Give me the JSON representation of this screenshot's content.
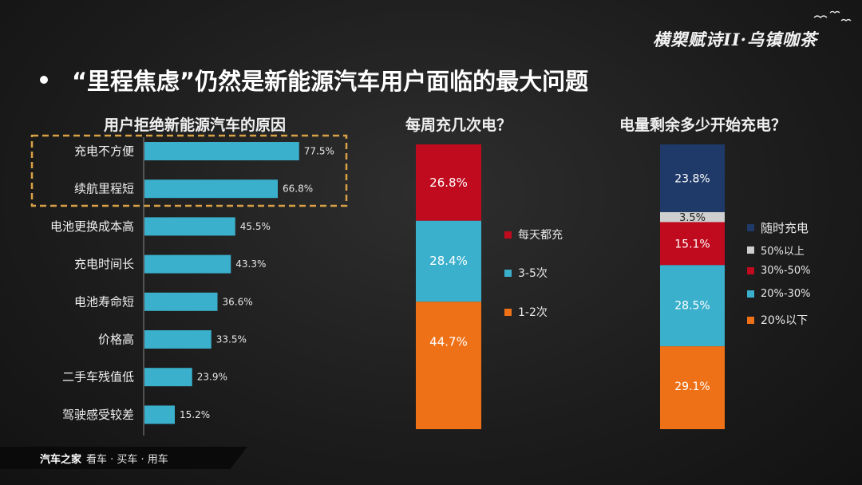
{
  "logo_text": "横槊赋诗II·乌镇咖茶",
  "title": "“里程焦虑”仍然是新能源汽车用户面临的最大问题",
  "footer": {
    "brand": "汽车之家",
    "slogan": "看车 · 买车 · 用车"
  },
  "colors": {
    "bar": "#3ab0cc",
    "highlight": "#d9a145",
    "daily": "#c00b1e",
    "mid": "#3ab0cc",
    "low": "#ee7118",
    "anytime": "#1f3a68",
    "above50": "#cfcfcf"
  },
  "chart_data": [
    {
      "type": "bar",
      "orientation": "horizontal",
      "title": "用户拒绝新能源汽车的原因",
      "categories": [
        "充电不方便",
        "续航里程短",
        "电池更换成本高",
        "充电时间长",
        "电池寿命短",
        "价格高",
        "二手车残值低",
        "驾驶感受较差"
      ],
      "values": [
        77.5,
        66.8,
        45.5,
        43.3,
        36.6,
        33.5,
        23.9,
        15.2
      ],
      "labels": [
        "77.5%",
        "66.8%",
        "45.5%",
        "43.3%",
        "36.6%",
        "33.5%",
        "23.9%",
        "15.2%"
      ],
      "highlighted": [
        "充电不方便",
        "续航里程短"
      ],
      "grid": false
    },
    {
      "type": "bar",
      "stacked": true,
      "title": "每周充几次电？",
      "series": [
        {
          "name": "每天都充",
          "value": 26.8,
          "label": "26.8%",
          "color": "#c00b1e"
        },
        {
          "name": "3-5次",
          "value": 28.4,
          "label": "28.4%",
          "color": "#3ab0cc"
        },
        {
          "name": "1-2次",
          "value": 44.7,
          "label": "44.7%",
          "color": "#ee7118"
        }
      ],
      "legend_position": "right",
      "grid": false
    },
    {
      "type": "bar",
      "stacked": true,
      "title": "电量剩余多少开始充电？",
      "series": [
        {
          "name": "随时充电",
          "value": 23.8,
          "label": "23.8%",
          "color": "#1f3a68"
        },
        {
          "name": "50%以上",
          "value": 3.5,
          "label": "3.5%",
          "color": "#cfcfcf"
        },
        {
          "name": "30%-50%",
          "value": 15.1,
          "label": "15.1%",
          "color": "#c00b1e"
        },
        {
          "name": "20%-30%",
          "value": 28.5,
          "label": "28.5%",
          "color": "#3ab0cc"
        },
        {
          "name": "20%以下",
          "value": 29.1,
          "label": "29.1%",
          "color": "#ee7118"
        }
      ],
      "legend_position": "right",
      "grid": false
    }
  ]
}
